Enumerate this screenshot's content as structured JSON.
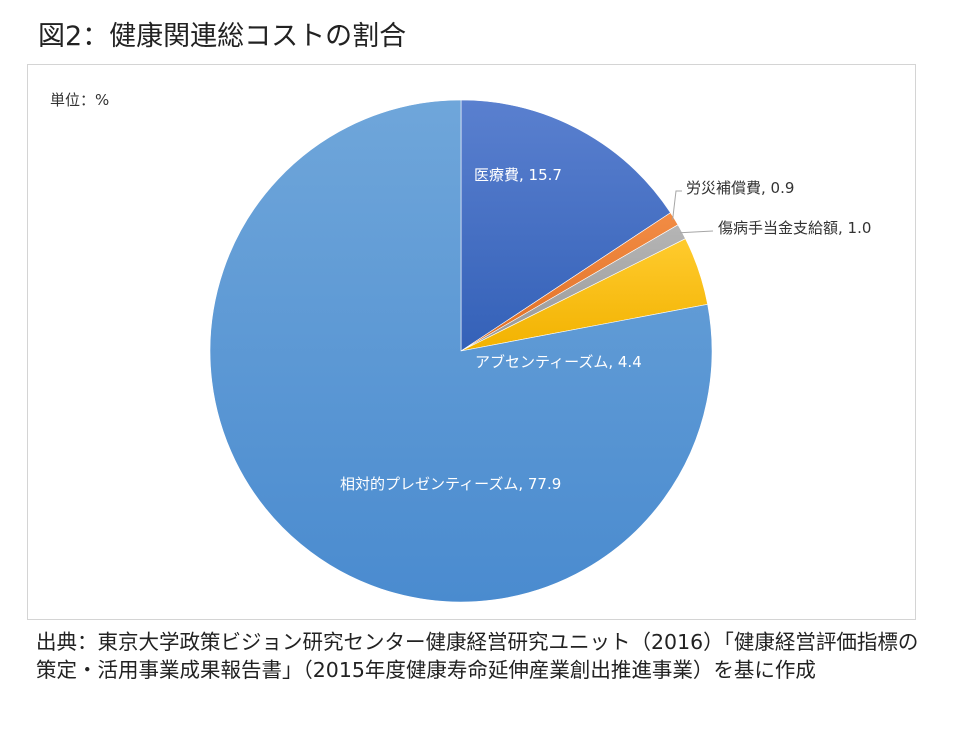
{
  "title": "図2：健康関連総コストの割合",
  "unit_label": "単位：%",
  "source_text": "出典：東京大学政策ビジョン研究センター健康経営研究ユニット（2016）「健康経営評価指標の策定・活用事業成果報告書」（2015年度健康寿命延伸産業創出推進事業）を基に作成",
  "chart_data": {
    "type": "pie",
    "title": "",
    "unit": "%",
    "slices": [
      {
        "label": "医療費",
        "value": 15.7,
        "display": "医療費, 15.7",
        "color": "#4472c4"
      },
      {
        "label": "労災補償費",
        "value": 0.9,
        "display": "労災補償費, 0.9",
        "color": "#ed7d31"
      },
      {
        "label": "傷病手当金支給額",
        "value": 1.0,
        "display": "傷病手当金支給額, 1.0",
        "color": "#a5a5a5"
      },
      {
        "label": "アブセンティーズム",
        "value": 4.4,
        "display": "アブセンティーズム, 4.4",
        "color": "#ffc000"
      },
      {
        "label": "相対的プレゼンティーズム",
        "value": 77.9,
        "display": "相対的プレゼンティーズム, 77.9",
        "color": "#5b9bd5"
      }
    ]
  }
}
